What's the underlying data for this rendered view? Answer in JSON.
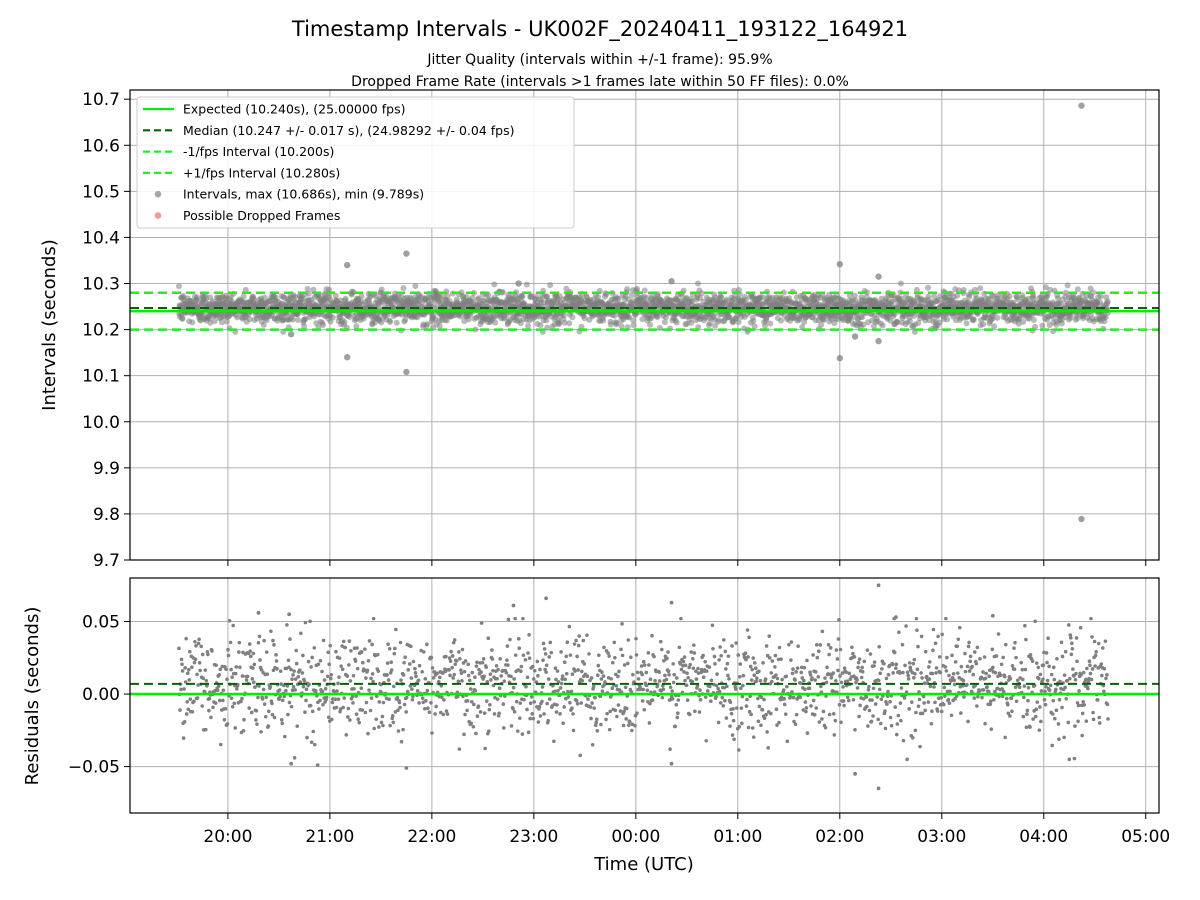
{
  "figure": {
    "title": "Timestamp Intervals - UK002F_20240411_193122_164921",
    "subtitle_1": "Jitter Quality (intervals within +/-1 frame): 95.9%",
    "subtitle_2": "Dropped Frame Rate (intervals >1 frames late within 50 FF files): 0.0%",
    "xlabel": "Time (UTC)"
  },
  "colors": {
    "expected": "#00ee00",
    "median": "#006400",
    "bounds": "#22ee22",
    "points": "#808080",
    "dropped": "#ff6666",
    "grid": "#b0b0b0"
  },
  "chart_data": [
    {
      "type": "scatter",
      "panel": "top",
      "ylabel": "Intervals (seconds)",
      "ylim": [
        9.7,
        10.72
      ],
      "yticks": [
        9.7,
        9.8,
        9.9,
        10.0,
        10.1,
        10.2,
        10.3,
        10.4,
        10.5,
        10.6,
        10.7
      ],
      "ytick_labels": [
        "9.7",
        "9.8",
        "9.9",
        "10.0",
        "10.1",
        "10.2",
        "10.3",
        "10.4",
        "10.5",
        "10.6",
        "10.7"
      ],
      "x_range_hours": [
        19.52,
        28.63
      ],
      "grid": true,
      "legend_position": "upper-left",
      "legend": [
        "Expected (10.240s), (25.00000 fps)",
        "Median (10.247 +/- 0.017 s), (24.98292 +/- 0.04 fps)",
        "-1/fps Interval (10.200s)",
        "+1/fps Interval (10.280s)",
        "Intervals, max (10.686s), min (9.789s)",
        "Possible Dropped Frames"
      ],
      "lines": {
        "expected": 10.24,
        "median": 10.247,
        "lower": 10.2,
        "upper": 10.28
      },
      "band_center": 10.247,
      "band_spread": 0.017,
      "outliers": [
        {
          "x": 21.17,
          "y": 10.34
        },
        {
          "x": 21.17,
          "y": 10.14
        },
        {
          "x": 21.75,
          "y": 10.365
        },
        {
          "x": 21.75,
          "y": 10.108
        },
        {
          "x": 26.0,
          "y": 10.342
        },
        {
          "x": 26.0,
          "y": 10.138
        },
        {
          "x": 26.38,
          "y": 10.315
        },
        {
          "x": 26.38,
          "y": 10.175
        },
        {
          "x": 26.15,
          "y": 10.185
        },
        {
          "x": 28.37,
          "y": 10.686
        },
        {
          "x": 28.37,
          "y": 9.789
        },
        {
          "x": 20.62,
          "y": 10.19
        },
        {
          "x": 22.85,
          "y": 10.3
        },
        {
          "x": 24.35,
          "y": 10.305
        }
      ]
    },
    {
      "type": "scatter",
      "panel": "bottom",
      "ylabel": "Residuals (seconds)",
      "ylim": [
        -0.082,
        0.08
      ],
      "yticks": [
        -0.05,
        0.0,
        0.05
      ],
      "ytick_labels": [
        "−0.05",
        "0.00",
        "0.05"
      ],
      "x_range_hours": [
        19.52,
        28.63
      ],
      "grid": true,
      "lines": {
        "zero": 0.0,
        "median_offset": 0.007
      },
      "residual_spread": 0.017,
      "outliers": [
        {
          "x": 26.38,
          "y": 0.075
        },
        {
          "x": 26.38,
          "y": -0.065
        },
        {
          "x": 26.15,
          "y": -0.055
        },
        {
          "x": 23.12,
          "y": 0.066
        },
        {
          "x": 24.35,
          "y": 0.063
        },
        {
          "x": 22.8,
          "y": 0.061
        },
        {
          "x": 24.35,
          "y": -0.048
        },
        {
          "x": 21.75,
          "y": -0.051
        },
        {
          "x": 20.88,
          "y": -0.049
        },
        {
          "x": 20.62,
          "y": -0.048
        },
        {
          "x": 20.3,
          "y": 0.056
        },
        {
          "x": 20.6,
          "y": 0.055
        },
        {
          "x": 27.5,
          "y": 0.054
        },
        {
          "x": 26.55,
          "y": 0.053
        }
      ]
    }
  ],
  "xaxis": {
    "ticks_hours": [
      20,
      21,
      22,
      23,
      24,
      25,
      26,
      27,
      28,
      29
    ],
    "tick_labels": [
      "20:00",
      "21:00",
      "22:00",
      "23:00",
      "00:00",
      "01:00",
      "02:00",
      "03:00",
      "04:00",
      "05:00"
    ],
    "xlim_hours": [
      19.04,
      29.13
    ]
  }
}
